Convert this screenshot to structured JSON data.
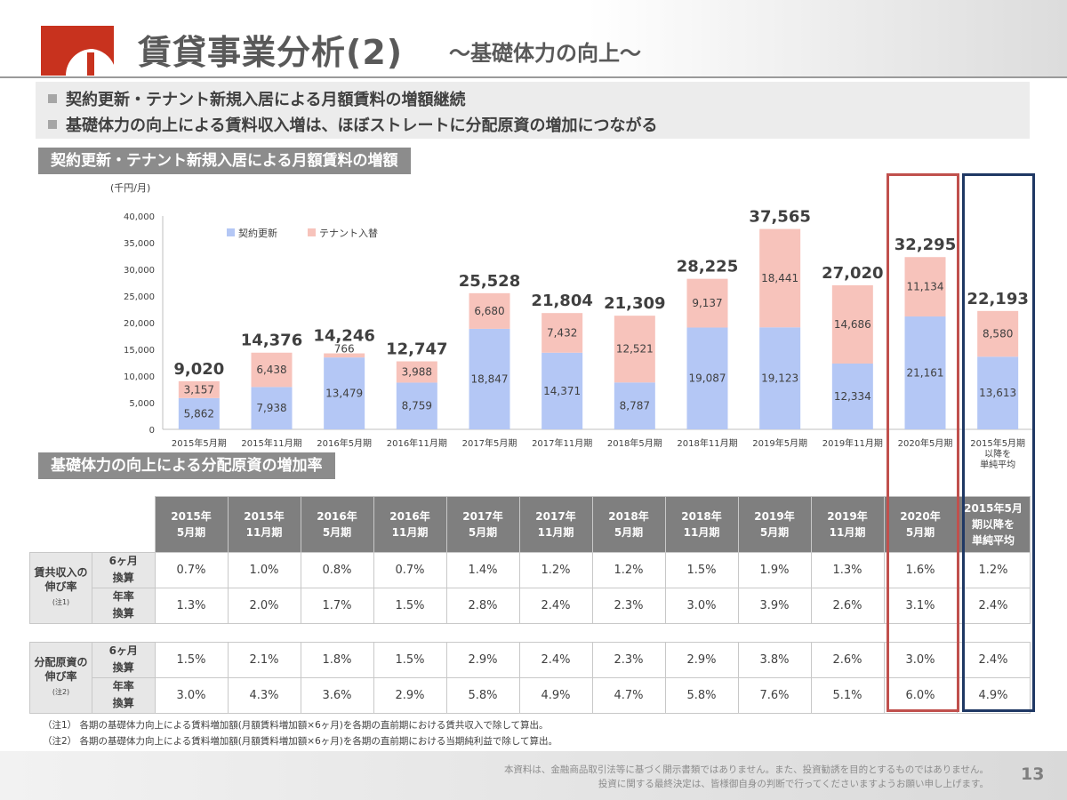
{
  "header": {
    "title": "賃貸事業分析(2)",
    "subtitle": "～基礎体力の向上～"
  },
  "bullets": [
    "契約更新・テナント新規入居による月額賃料の増額継続",
    "基礎体力の向上による賃料収入増は、ほぼストレートに分配原資の増加につながる"
  ],
  "section1_label": "契約更新・テナント新規入居による月額賃料の増額",
  "section2_label": "基礎体力の向上による分配原資の増加率",
  "chart_data": {
    "type": "bar",
    "stacked": true,
    "unit": "(千円/月)",
    "ylim": [
      0,
      40000
    ],
    "yticks": [
      "0",
      "5,000",
      "10,000",
      "15,000",
      "20,000",
      "25,000",
      "30,000",
      "35,000",
      "40,000"
    ],
    "categories": [
      "2015年5月期",
      "2015年11月期",
      "2016年5月期",
      "2016年11月期",
      "2017年5月期",
      "2017年11月期",
      "2018年5月期",
      "2018年11月期",
      "2019年5月期",
      "2019年11月期",
      "2020年5月期",
      "2015年5月期 以降を 単純平均"
    ],
    "series": [
      {
        "name": "契約更新",
        "color": "#b4c7f5",
        "values": [
          5862,
          7938,
          13479,
          8759,
          18847,
          14371,
          8787,
          19087,
          19123,
          12334,
          21161,
          13613
        ],
        "labels": [
          "5,862",
          "7,938",
          "13,479",
          "8,759",
          "18,847",
          "14,371",
          "8,787",
          "19,087",
          "19,123",
          "12,334",
          "21,161",
          "13,613"
        ]
      },
      {
        "name": "テナント入替",
        "color": "#f7c3bb",
        "values": [
          3157,
          6438,
          766,
          3988,
          6680,
          7432,
          12521,
          9137,
          18441,
          14686,
          11134,
          8580
        ],
        "labels": [
          "3,157",
          "6,438",
          "766",
          "3,988",
          "6,680",
          "7,432",
          "12,521",
          "9,137",
          "18,441",
          "14,686",
          "11,134",
          "8,580"
        ]
      }
    ],
    "totals": [
      9020,
      14376,
      14246,
      12747,
      25528,
      21804,
      21309,
      28225,
      37565,
      27020,
      32295,
      22193
    ],
    "total_labels": [
      "9,020",
      "14,376",
      "14,246",
      "12,747",
      "25,528",
      "21,804",
      "21,309",
      "28,225",
      "37,565",
      "27,020",
      "32,295",
      "22,193"
    ]
  },
  "table": {
    "headers": [
      [
        "2015年",
        "5月期"
      ],
      [
        "2015年",
        "11月期"
      ],
      [
        "2016年",
        "5月期"
      ],
      [
        "2016年",
        "11月期"
      ],
      [
        "2017年",
        "5月期"
      ],
      [
        "2017年",
        "11月期"
      ],
      [
        "2018年",
        "5月期"
      ],
      [
        "2018年",
        "11月期"
      ],
      [
        "2019年",
        "5月期"
      ],
      [
        "2019年",
        "11月期"
      ],
      [
        "2020年",
        "5月期"
      ],
      [
        "2015年5月",
        "期以降を",
        "単純平均"
      ]
    ],
    "group1": {
      "label": [
        "賃共収入の",
        "伸び率"
      ],
      "note": "(注1)",
      "rows": [
        {
          "label": [
            "6ヶ月",
            "換算"
          ],
          "values": [
            "0.7%",
            "1.0%",
            "0.8%",
            "0.7%",
            "1.4%",
            "1.2%",
            "1.2%",
            "1.5%",
            "1.9%",
            "1.3%",
            "1.6%",
            "1.2%"
          ]
        },
        {
          "label": [
            "年率",
            "換算"
          ],
          "values": [
            "1.3%",
            "2.0%",
            "1.7%",
            "1.5%",
            "2.8%",
            "2.4%",
            "2.3%",
            "3.0%",
            "3.9%",
            "2.6%",
            "3.1%",
            "2.4%"
          ]
        }
      ]
    },
    "group2": {
      "label": [
        "分配原資の",
        "伸び率"
      ],
      "note": "(注2)",
      "rows": [
        {
          "label": [
            "6ヶ月",
            "換算"
          ],
          "values": [
            "1.5%",
            "2.1%",
            "1.8%",
            "1.5%",
            "2.9%",
            "2.4%",
            "2.3%",
            "2.9%",
            "3.8%",
            "2.6%",
            "3.0%",
            "2.4%"
          ]
        },
        {
          "label": [
            "年率",
            "換算"
          ],
          "values": [
            "3.0%",
            "4.3%",
            "3.6%",
            "2.9%",
            "5.8%",
            "4.9%",
            "4.7%",
            "5.8%",
            "7.6%",
            "5.1%",
            "6.0%",
            "4.9%"
          ]
        }
      ]
    }
  },
  "notes": [
    "（注1） 各期の基礎体力向上による賃料増加額(月額賃料増加額×6ヶ月)を各期の直前期における賃共収入で除して算出。",
    "（注2） 各期の基礎体力向上による賃料増加額(月額賃料増加額×6ヶ月)を各期の直前期における当期純利益で除して算出。"
  ],
  "footer": {
    "disclaimer": [
      "本資料は、金融商品取引法等に基づく開示書類ではありません。また、投資勧誘を目的とするものではありません。",
      "投資に関する最終決定は、皆様御自身の判断で行ってくださいますようお願い申し上げます。"
    ],
    "page_number": "13"
  },
  "colors": {
    "renewal": "#b4c7f5",
    "tenant": "#f7c3bb",
    "highlight_red": "#c0504d",
    "highlight_navy": "#1f3864",
    "brand_red": "#c8321e"
  }
}
